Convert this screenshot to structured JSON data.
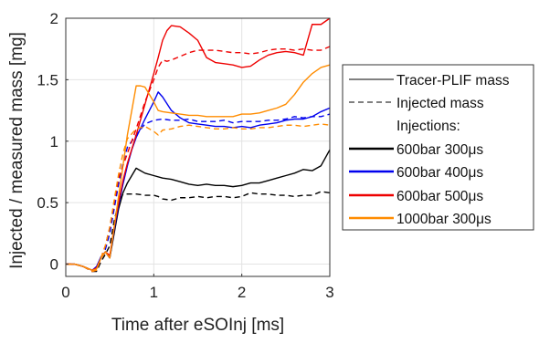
{
  "chart_data": {
    "type": "line",
    "xlabel": "Time after eSOInj [ms]",
    "ylabel": "Injected / measured mass [mg]",
    "xlim": [
      0,
      3
    ],
    "ylim": [
      -0.1,
      2
    ],
    "xticks": [
      0,
      1,
      2,
      3
    ],
    "yticks": [
      0,
      0.5,
      1,
      1.5,
      2
    ],
    "grid": true,
    "legend_position": "outside-right",
    "legend": {
      "style_entries": [
        {
          "label": "Tracer-PLIF mass",
          "dash": "solid"
        },
        {
          "label": "Injected mass",
          "dash": "dashed"
        }
      ],
      "heading": "Injections:",
      "series_entries": [
        {
          "label": "600bar 300",
          "unit": "μs",
          "color": "#000000"
        },
        {
          "label": "600bar 400",
          "unit": "μs",
          "color": "#0000ee"
        },
        {
          "label": "600bar 500",
          "unit": "μs",
          "color": "#ee0000"
        },
        {
          "label": "1000bar 300",
          "unit": "μs",
          "color": "#ff8c00"
        }
      ]
    },
    "series": [
      {
        "color": "#000000",
        "dash": "solid",
        "points": [
          [
            0,
            0
          ],
          [
            0.1,
            0
          ],
          [
            0.2,
            -0.02
          ],
          [
            0.3,
            -0.05
          ],
          [
            0.35,
            -0.03
          ],
          [
            0.4,
            0.05
          ],
          [
            0.45,
            0.1
          ],
          [
            0.5,
            0.05
          ],
          [
            0.55,
            0.25
          ],
          [
            0.6,
            0.45
          ],
          [
            0.65,
            0.58
          ],
          [
            0.7,
            0.66
          ],
          [
            0.75,
            0.72
          ],
          [
            0.8,
            0.78
          ],
          [
            0.85,
            0.76
          ],
          [
            0.9,
            0.74
          ],
          [
            1.0,
            0.72
          ],
          [
            1.1,
            0.7
          ],
          [
            1.2,
            0.69
          ],
          [
            1.3,
            0.67
          ],
          [
            1.4,
            0.65
          ],
          [
            1.5,
            0.64
          ],
          [
            1.6,
            0.65
          ],
          [
            1.7,
            0.64
          ],
          [
            1.8,
            0.64
          ],
          [
            1.9,
            0.63
          ],
          [
            2.0,
            0.64
          ],
          [
            2.1,
            0.66
          ],
          [
            2.2,
            0.66
          ],
          [
            2.3,
            0.68
          ],
          [
            2.4,
            0.7
          ],
          [
            2.5,
            0.72
          ],
          [
            2.6,
            0.74
          ],
          [
            2.7,
            0.77
          ],
          [
            2.8,
            0.76
          ],
          [
            2.9,
            0.8
          ],
          [
            3.0,
            0.93
          ]
        ]
      },
      {
        "color": "#000000",
        "dash": "dashed",
        "points": [
          [
            0,
            0
          ],
          [
            0.1,
            0
          ],
          [
            0.2,
            -0.02
          ],
          [
            0.3,
            -0.06
          ],
          [
            0.35,
            -0.06
          ],
          [
            0.4,
            0.02
          ],
          [
            0.45,
            0.08
          ],
          [
            0.5,
            0.15
          ],
          [
            0.55,
            0.35
          ],
          [
            0.6,
            0.5
          ],
          [
            0.65,
            0.57
          ],
          [
            0.7,
            0.57
          ],
          [
            0.8,
            0.57
          ],
          [
            0.9,
            0.56
          ],
          [
            1.0,
            0.56
          ],
          [
            1.05,
            0.55
          ],
          [
            1.1,
            0.53
          ],
          [
            1.2,
            0.52
          ],
          [
            1.3,
            0.54
          ],
          [
            1.4,
            0.54
          ],
          [
            1.5,
            0.55
          ],
          [
            1.6,
            0.54
          ],
          [
            1.7,
            0.55
          ],
          [
            1.8,
            0.55
          ],
          [
            1.9,
            0.54
          ],
          [
            2.0,
            0.55
          ],
          [
            2.1,
            0.58
          ],
          [
            2.2,
            0.57
          ],
          [
            2.3,
            0.57
          ],
          [
            2.4,
            0.56
          ],
          [
            2.5,
            0.56
          ],
          [
            2.6,
            0.55
          ],
          [
            2.7,
            0.56
          ],
          [
            2.8,
            0.56
          ],
          [
            2.9,
            0.59
          ],
          [
            3.0,
            0.58
          ]
        ]
      },
      {
        "color": "#0000ee",
        "dash": "solid",
        "points": [
          [
            0,
            0
          ],
          [
            0.1,
            0
          ],
          [
            0.2,
            -0.02
          ],
          [
            0.3,
            -0.05
          ],
          [
            0.35,
            -0.02
          ],
          [
            0.4,
            0.06
          ],
          [
            0.45,
            0.1
          ],
          [
            0.5,
            0.05
          ],
          [
            0.55,
            0.28
          ],
          [
            0.6,
            0.48
          ],
          [
            0.65,
            0.65
          ],
          [
            0.7,
            0.8
          ],
          [
            0.75,
            0.93
          ],
          [
            0.8,
            1.03
          ],
          [
            0.9,
            1.18
          ],
          [
            1.0,
            1.32
          ],
          [
            1.05,
            1.4
          ],
          [
            1.1,
            1.36
          ],
          [
            1.2,
            1.25
          ],
          [
            1.3,
            1.19
          ],
          [
            1.4,
            1.15
          ],
          [
            1.5,
            1.14
          ],
          [
            1.6,
            1.13
          ],
          [
            1.7,
            1.12
          ],
          [
            1.8,
            1.12
          ],
          [
            1.9,
            1.11
          ],
          [
            2.0,
            1.12
          ],
          [
            2.1,
            1.11
          ],
          [
            2.2,
            1.13
          ],
          [
            2.3,
            1.14
          ],
          [
            2.4,
            1.15
          ],
          [
            2.5,
            1.17
          ],
          [
            2.6,
            1.18
          ],
          [
            2.7,
            1.18
          ],
          [
            2.8,
            1.2
          ],
          [
            2.9,
            1.24
          ],
          [
            3.0,
            1.27
          ]
        ]
      },
      {
        "color": "#0000ee",
        "dash": "dashed",
        "points": [
          [
            0,
            0
          ],
          [
            0.1,
            0
          ],
          [
            0.2,
            -0.02
          ],
          [
            0.3,
            -0.06
          ],
          [
            0.35,
            -0.05
          ],
          [
            0.4,
            0.05
          ],
          [
            0.45,
            0.12
          ],
          [
            0.5,
            0.25
          ],
          [
            0.55,
            0.45
          ],
          [
            0.6,
            0.65
          ],
          [
            0.65,
            0.82
          ],
          [
            0.7,
            0.95
          ],
          [
            0.8,
            1.05
          ],
          [
            0.9,
            1.14
          ],
          [
            1.0,
            1.17
          ],
          [
            1.1,
            1.18
          ],
          [
            1.2,
            1.17
          ],
          [
            1.3,
            1.17
          ],
          [
            1.4,
            1.18
          ],
          [
            1.5,
            1.16
          ],
          [
            1.6,
            1.16
          ],
          [
            1.7,
            1.16
          ],
          [
            1.8,
            1.17
          ],
          [
            1.9,
            1.15
          ],
          [
            2.0,
            1.16
          ],
          [
            2.1,
            1.16
          ],
          [
            2.2,
            1.16
          ],
          [
            2.3,
            1.17
          ],
          [
            2.4,
            1.17
          ],
          [
            2.5,
            1.18
          ],
          [
            2.6,
            1.2
          ],
          [
            2.7,
            1.19
          ],
          [
            2.8,
            1.2
          ],
          [
            2.9,
            1.2
          ],
          [
            3.0,
            1.22
          ]
        ]
      },
      {
        "color": "#ee0000",
        "dash": "solid",
        "points": [
          [
            0,
            0
          ],
          [
            0.1,
            0
          ],
          [
            0.2,
            -0.02
          ],
          [
            0.3,
            -0.05
          ],
          [
            0.35,
            -0.03
          ],
          [
            0.4,
            0.05
          ],
          [
            0.45,
            0.1
          ],
          [
            0.5,
            0.07
          ],
          [
            0.55,
            0.3
          ],
          [
            0.6,
            0.5
          ],
          [
            0.65,
            0.68
          ],
          [
            0.7,
            0.82
          ],
          [
            0.8,
            1.05
          ],
          [
            0.9,
            1.3
          ],
          [
            1.0,
            1.55
          ],
          [
            1.05,
            1.68
          ],
          [
            1.1,
            1.82
          ],
          [
            1.15,
            1.9
          ],
          [
            1.2,
            1.94
          ],
          [
            1.3,
            1.93
          ],
          [
            1.4,
            1.88
          ],
          [
            1.5,
            1.82
          ],
          [
            1.6,
            1.68
          ],
          [
            1.7,
            1.64
          ],
          [
            1.8,
            1.63
          ],
          [
            1.9,
            1.62
          ],
          [
            2.0,
            1.6
          ],
          [
            2.1,
            1.61
          ],
          [
            2.2,
            1.66
          ],
          [
            2.3,
            1.7
          ],
          [
            2.4,
            1.72
          ],
          [
            2.5,
            1.73
          ],
          [
            2.6,
            1.72
          ],
          [
            2.7,
            1.7
          ],
          [
            2.8,
            1.95
          ],
          [
            2.9,
            1.95
          ],
          [
            3.0,
            2.0
          ]
        ]
      },
      {
        "color": "#ee0000",
        "dash": "dashed",
        "points": [
          [
            0,
            0
          ],
          [
            0.1,
            0
          ],
          [
            0.2,
            -0.02
          ],
          [
            0.3,
            -0.06
          ],
          [
            0.35,
            -0.05
          ],
          [
            0.4,
            0.05
          ],
          [
            0.45,
            0.15
          ],
          [
            0.5,
            0.3
          ],
          [
            0.55,
            0.5
          ],
          [
            0.6,
            0.7
          ],
          [
            0.7,
            0.9
          ],
          [
            0.8,
            1.1
          ],
          [
            0.9,
            1.32
          ],
          [
            1.0,
            1.5
          ],
          [
            1.05,
            1.6
          ],
          [
            1.1,
            1.66
          ],
          [
            1.15,
            1.65
          ],
          [
            1.2,
            1.66
          ],
          [
            1.3,
            1.69
          ],
          [
            1.4,
            1.72
          ],
          [
            1.5,
            1.74
          ],
          [
            1.6,
            1.74
          ],
          [
            1.7,
            1.74
          ],
          [
            1.8,
            1.73
          ],
          [
            1.9,
            1.72
          ],
          [
            2.0,
            1.72
          ],
          [
            2.1,
            1.71
          ],
          [
            2.2,
            1.72
          ],
          [
            2.3,
            1.74
          ],
          [
            2.4,
            1.75
          ],
          [
            2.5,
            1.75
          ],
          [
            2.6,
            1.74
          ],
          [
            2.7,
            1.75
          ],
          [
            2.8,
            1.74
          ],
          [
            2.9,
            1.74
          ],
          [
            3.0,
            1.77
          ]
        ]
      },
      {
        "color": "#ff8c00",
        "dash": "solid",
        "points": [
          [
            0,
            0
          ],
          [
            0.1,
            0
          ],
          [
            0.2,
            -0.02
          ],
          [
            0.3,
            -0.05
          ],
          [
            0.35,
            -0.04
          ],
          [
            0.4,
            0.05
          ],
          [
            0.45,
            0.1
          ],
          [
            0.5,
            0.05
          ],
          [
            0.55,
            0.3
          ],
          [
            0.6,
            0.55
          ],
          [
            0.65,
            0.8
          ],
          [
            0.7,
            1.05
          ],
          [
            0.75,
            1.25
          ],
          [
            0.8,
            1.45
          ],
          [
            0.85,
            1.45
          ],
          [
            0.9,
            1.44
          ],
          [
            1.0,
            1.32
          ],
          [
            1.05,
            1.25
          ],
          [
            1.1,
            1.24
          ],
          [
            1.2,
            1.23
          ],
          [
            1.3,
            1.22
          ],
          [
            1.4,
            1.21
          ],
          [
            1.5,
            1.21
          ],
          [
            1.6,
            1.2
          ],
          [
            1.7,
            1.2
          ],
          [
            1.8,
            1.2
          ],
          [
            1.9,
            1.2
          ],
          [
            2.0,
            1.22
          ],
          [
            2.1,
            1.22
          ],
          [
            2.2,
            1.23
          ],
          [
            2.3,
            1.25
          ],
          [
            2.4,
            1.27
          ],
          [
            2.5,
            1.3
          ],
          [
            2.6,
            1.38
          ],
          [
            2.7,
            1.48
          ],
          [
            2.8,
            1.55
          ],
          [
            2.9,
            1.6
          ],
          [
            3.0,
            1.62
          ]
        ]
      },
      {
        "color": "#ff8c00",
        "dash": "dashed",
        "points": [
          [
            0,
            0
          ],
          [
            0.1,
            0
          ],
          [
            0.2,
            -0.02
          ],
          [
            0.3,
            -0.06
          ],
          [
            0.35,
            -0.05
          ],
          [
            0.4,
            0.05
          ],
          [
            0.45,
            0.15
          ],
          [
            0.5,
            0.3
          ],
          [
            0.55,
            0.52
          ],
          [
            0.6,
            0.73
          ],
          [
            0.65,
            0.9
          ],
          [
            0.7,
            1.02
          ],
          [
            0.8,
            1.1
          ],
          [
            0.9,
            1.12
          ],
          [
            1.0,
            1.08
          ],
          [
            1.05,
            1.05
          ],
          [
            1.1,
            1.09
          ],
          [
            1.2,
            1.1
          ],
          [
            1.3,
            1.12
          ],
          [
            1.4,
            1.13
          ],
          [
            1.5,
            1.12
          ],
          [
            1.6,
            1.11
          ],
          [
            1.7,
            1.1
          ],
          [
            1.8,
            1.1
          ],
          [
            1.9,
            1.11
          ],
          [
            2.0,
            1.1
          ],
          [
            2.1,
            1.1
          ],
          [
            2.2,
            1.11
          ],
          [
            2.3,
            1.11
          ],
          [
            2.4,
            1.12
          ],
          [
            2.5,
            1.13
          ],
          [
            2.6,
            1.13
          ],
          [
            2.7,
            1.12
          ],
          [
            2.8,
            1.13
          ],
          [
            2.9,
            1.14
          ],
          [
            3.0,
            1.13
          ]
        ]
      }
    ]
  }
}
